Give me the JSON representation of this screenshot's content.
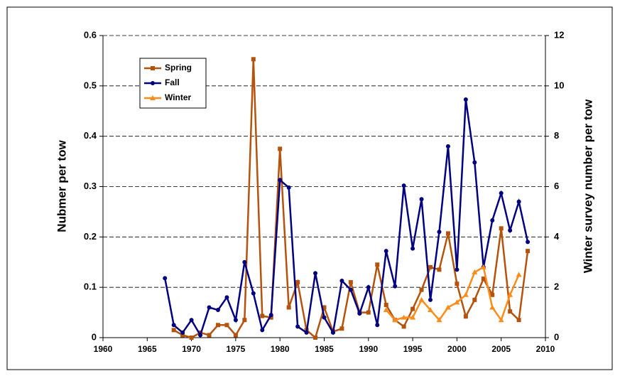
{
  "chart_data": {
    "type": "line",
    "y_label": "Nubmer per tow",
    "y2_label": "Winter survey number per tow",
    "x": [
      1967,
      1968,
      1969,
      1970,
      1971,
      1972,
      1973,
      1974,
      1975,
      1976,
      1977,
      1978,
      1979,
      1980,
      1981,
      1982,
      1983,
      1984,
      1985,
      1986,
      1987,
      1988,
      1989,
      1990,
      1991,
      1992,
      1993,
      1994,
      1995,
      1996,
      1997,
      1998,
      1999,
      2000,
      2001,
      2002,
      2003,
      2004,
      2005,
      2006,
      2007,
      2008
    ],
    "series": [
      {
        "name": "Spring",
        "color": "#b4530e",
        "marker": "square",
        "values": [
          null,
          0.015,
          0.005,
          0.0,
          0.01,
          0.005,
          0.025,
          0.025,
          0.005,
          0.035,
          0.553,
          0.043,
          0.04,
          0.375,
          0.06,
          0.11,
          0.015,
          0.0,
          0.06,
          0.012,
          0.018,
          0.11,
          0.05,
          0.05,
          0.145,
          0.065,
          0.035,
          0.022,
          0.057,
          0.095,
          0.14,
          0.135,
          0.207,
          0.107,
          0.042,
          0.075,
          0.117,
          0.085,
          0.217,
          0.052,
          0.035,
          0.172
        ]
      },
      {
        "name": "Fall",
        "color": "#000080",
        "marker": "circle",
        "values": [
          0.118,
          0.025,
          0.01,
          0.035,
          0.005,
          0.06,
          0.055,
          0.08,
          0.035,
          0.15,
          0.088,
          0.015,
          0.045,
          0.313,
          0.298,
          0.022,
          0.01,
          0.128,
          0.04,
          0.01,
          0.113,
          0.095,
          0.048,
          0.1,
          0.025,
          0.172,
          0.102,
          0.302,
          0.177,
          0.275,
          0.075,
          0.21,
          0.38,
          0.135,
          0.473,
          0.348,
          0.14,
          0.233,
          0.287,
          0.213,
          0.27,
          0.19
        ]
      },
      {
        "name": "Winter",
        "color": "#ff8c1a",
        "marker": "triangle",
        "axis": "y2",
        "values": [
          null,
          null,
          null,
          null,
          null,
          null,
          null,
          null,
          null,
          null,
          null,
          null,
          null,
          null,
          null,
          null,
          null,
          null,
          null,
          null,
          null,
          null,
          null,
          null,
          null,
          1.1,
          0.7,
          0.8,
          0.8,
          1.5,
          1.1,
          0.7,
          1.2,
          1.4,
          1.7,
          2.6,
          2.8,
          1.2,
          0.7,
          1.7,
          2.5,
          null
        ]
      }
    ],
    "xlim": [
      1960,
      2010
    ],
    "xticks": [
      1960,
      1965,
      1970,
      1975,
      1980,
      1985,
      1990,
      1995,
      2000,
      2005,
      2010
    ],
    "ylim": [
      0,
      0.6
    ],
    "yticks": [
      0,
      0.1,
      0.2,
      0.3,
      0.4,
      0.5,
      0.6
    ],
    "y2lim": [
      0,
      12
    ],
    "y2ticks": [
      0,
      2,
      4,
      6,
      8,
      10,
      12
    ],
    "grid": true,
    "legend": "upper left"
  }
}
